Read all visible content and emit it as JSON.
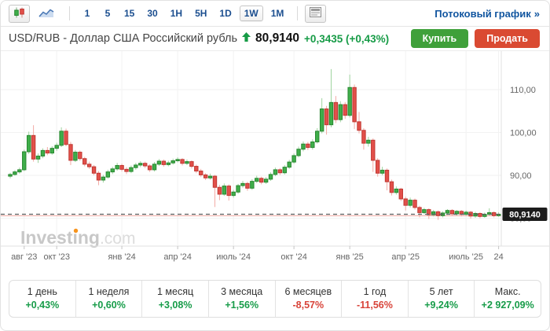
{
  "toolbar": {
    "chart_type_buttons": [
      {
        "name": "candlestick",
        "active": true
      },
      {
        "name": "line",
        "active": false
      }
    ],
    "timeframes": [
      "1",
      "5",
      "15",
      "30",
      "1H",
      "5H",
      "1D",
      "1W",
      "1M"
    ],
    "active_timeframe": "1W",
    "streaming_link": "Потоковый график",
    "streaming_link_chevron": "»"
  },
  "header": {
    "title": "USD/RUB - Доллар США Российский рубль",
    "price": "80,9140",
    "change": "+0,3435",
    "change_pct": "(+0,43%)",
    "direction": "up",
    "buy_label": "Купить",
    "sell_label": "Продать"
  },
  "chart_data": {
    "type": "candlestick",
    "instrument": "USD/RUB",
    "timeframe": "1W",
    "watermark": {
      "main": "Investing",
      "suffix": ".com",
      "dot_color": "#f7941d"
    },
    "ylim": [
      78,
      116
    ],
    "y_ticks": [
      {
        "value": 110,
        "label": "110,00"
      },
      {
        "value": 100,
        "label": "100,00"
      },
      {
        "value": 90,
        "label": "90,00"
      },
      {
        "value": 80,
        "label": "80,00"
      }
    ],
    "x_ticks": [
      {
        "index": 3,
        "label": "авг '23"
      },
      {
        "index": 10,
        "label": "окт '23"
      },
      {
        "index": 24,
        "label": "янв '24"
      },
      {
        "index": 36,
        "label": "апр '24"
      },
      {
        "index": 48,
        "label": "июль '24"
      },
      {
        "index": 61,
        "label": "окт '24"
      },
      {
        "index": 73,
        "label": "янв '25"
      },
      {
        "index": 85,
        "label": "апр '25"
      },
      {
        "index": 98,
        "label": "июль '25"
      },
      {
        "index": 105,
        "label": "24"
      }
    ],
    "last_price": 80.914,
    "last_price_label": "80,9140",
    "prev_close_line": 80.55,
    "candles": [
      [
        89.8,
        90.6,
        89.3,
        90.2
      ],
      [
        90.2,
        91.2,
        89.9,
        90.8
      ],
      [
        90.8,
        91.8,
        90.4,
        91.3
      ],
      [
        91.3,
        96.0,
        91.0,
        95.5
      ],
      [
        95.5,
        100.2,
        95.0,
        99.3
      ],
      [
        99.3,
        101.7,
        93.2,
        93.8
      ],
      [
        93.8,
        95.1,
        92.9,
        94.5
      ],
      [
        94.5,
        96.3,
        94.0,
        95.8
      ],
      [
        95.8,
        96.6,
        94.7,
        95.2
      ],
      [
        95.2,
        96.8,
        94.8,
        96.3
      ],
      [
        96.3,
        97.6,
        95.7,
        97.0
      ],
      [
        97.0,
        101.2,
        96.6,
        100.3
      ],
      [
        100.3,
        100.9,
        96.8,
        97.2
      ],
      [
        97.2,
        97.8,
        92.4,
        93.5
      ],
      [
        93.5,
        95.9,
        93.1,
        95.4
      ],
      [
        95.4,
        95.8,
        93.4,
        93.9
      ],
      [
        93.9,
        94.3,
        92.1,
        92.6
      ],
      [
        92.6,
        93.2,
        91.5,
        92.0
      ],
      [
        92.0,
        92.4,
        90.0,
        90.5
      ],
      [
        90.5,
        91.0,
        87.7,
        88.9
      ],
      [
        88.9,
        90.1,
        88.3,
        89.6
      ],
      [
        89.6,
        91.3,
        89.2,
        90.8
      ],
      [
        90.8,
        92.0,
        90.3,
        91.5
      ],
      [
        91.5,
        92.9,
        91.1,
        92.3
      ],
      [
        92.3,
        92.7,
        90.9,
        91.4
      ],
      [
        91.4,
        91.9,
        90.3,
        90.9
      ],
      [
        90.9,
        92.3,
        90.5,
        91.8
      ],
      [
        91.8,
        92.9,
        91.3,
        92.4
      ],
      [
        92.4,
        93.3,
        91.9,
        92.8
      ],
      [
        92.8,
        93.2,
        91.7,
        92.2
      ],
      [
        92.2,
        92.6,
        90.8,
        91.3
      ],
      [
        91.3,
        93.1,
        90.9,
        92.6
      ],
      [
        92.6,
        93.8,
        92.2,
        93.3
      ],
      [
        93.3,
        93.7,
        92.0,
        92.5
      ],
      [
        92.5,
        93.4,
        92.1,
        92.9
      ],
      [
        92.9,
        93.9,
        92.5,
        93.4
      ],
      [
        93.4,
        94.2,
        93.0,
        93.7
      ],
      [
        93.7,
        94.0,
        92.3,
        92.8
      ],
      [
        92.8,
        93.7,
        92.4,
        93.2
      ],
      [
        93.2,
        93.5,
        91.6,
        92.1
      ],
      [
        92.1,
        92.5,
        90.5,
        91.0
      ],
      [
        91.0,
        91.5,
        89.6,
        90.1
      ],
      [
        90.1,
        90.5,
        88.9,
        89.4
      ],
      [
        89.4,
        90.4,
        89.0,
        89.8
      ],
      [
        89.8,
        90.1,
        82.6,
        87.2
      ],
      [
        87.2,
        87.8,
        84.2,
        85.6
      ],
      [
        85.6,
        88.1,
        85.2,
        87.5
      ],
      [
        87.5,
        87.9,
        84.1,
        85.3
      ],
      [
        85.3,
        86.6,
        84.8,
        86.1
      ],
      [
        86.1,
        88.0,
        85.7,
        87.6
      ],
      [
        87.6,
        88.7,
        87.1,
        88.1
      ],
      [
        88.1,
        88.5,
        86.4,
        87.0
      ],
      [
        87.0,
        89.1,
        86.6,
        88.6
      ],
      [
        88.6,
        89.9,
        88.2,
        89.3
      ],
      [
        89.3,
        89.7,
        87.9,
        88.4
      ],
      [
        88.4,
        89.6,
        88.0,
        89.1
      ],
      [
        89.1,
        90.7,
        88.7,
        90.2
      ],
      [
        90.2,
        91.8,
        89.8,
        91.3
      ],
      [
        91.3,
        91.7,
        90.1,
        90.6
      ],
      [
        90.6,
        92.4,
        90.2,
        91.9
      ],
      [
        91.9,
        93.6,
        91.5,
        93.1
      ],
      [
        93.1,
        95.1,
        92.7,
        94.6
      ],
      [
        94.6,
        96.7,
        94.2,
        96.1
      ],
      [
        96.1,
        97.9,
        95.6,
        97.3
      ],
      [
        97.3,
        97.8,
        95.9,
        96.5
      ],
      [
        96.5,
        98.4,
        96.0,
        97.8
      ],
      [
        97.8,
        101.0,
        97.4,
        100.3
      ],
      [
        100.3,
        108.0,
        99.8,
        105.5
      ],
      [
        105.5,
        106.2,
        99.5,
        101.8
      ],
      [
        101.8,
        114.8,
        101.2,
        107.0
      ],
      [
        107.0,
        108.5,
        102.2,
        103.0
      ],
      [
        103.0,
        107.3,
        102.4,
        106.5
      ],
      [
        106.5,
        107.1,
        103.2,
        104.0
      ],
      [
        104.0,
        113.5,
        103.5,
        110.5
      ],
      [
        110.5,
        111.2,
        100.8,
        102.5
      ],
      [
        102.5,
        104.8,
        99.8,
        100.5
      ],
      [
        100.5,
        101.0,
        96.0,
        97.5
      ],
      [
        97.5,
        99.0,
        96.7,
        98.2
      ],
      [
        98.2,
        98.6,
        90.8,
        93.5
      ],
      [
        93.5,
        94.0,
        89.7,
        90.5
      ],
      [
        90.5,
        92.0,
        90.0,
        91.2
      ],
      [
        91.2,
        91.6,
        86.5,
        88.5
      ],
      [
        88.5,
        89.0,
        85.3,
        86.0
      ],
      [
        86.0,
        87.4,
        85.5,
        86.8
      ],
      [
        86.8,
        87.1,
        84.0,
        84.5
      ],
      [
        84.5,
        85.0,
        81.8,
        83.0
      ],
      [
        83.0,
        84.8,
        82.5,
        84.2
      ],
      [
        84.2,
        84.6,
        82.0,
        82.5
      ],
      [
        82.5,
        82.9,
        80.2,
        81.3
      ],
      [
        81.3,
        82.4,
        80.9,
        82.0
      ],
      [
        82.0,
        82.3,
        79.8,
        80.8
      ],
      [
        80.8,
        81.9,
        80.4,
        81.5
      ],
      [
        81.5,
        81.8,
        79.6,
        80.6
      ],
      [
        80.6,
        81.6,
        80.2,
        81.2
      ],
      [
        81.2,
        82.1,
        80.8,
        81.8
      ],
      [
        81.8,
        82.1,
        80.6,
        81.0
      ],
      [
        81.0,
        81.9,
        80.6,
        81.6
      ],
      [
        81.6,
        81.9,
        80.4,
        80.9
      ],
      [
        80.9,
        81.8,
        80.5,
        81.4
      ],
      [
        81.4,
        81.7,
        79.9,
        80.5
      ],
      [
        80.5,
        81.5,
        80.1,
        81.1
      ],
      [
        81.1,
        81.4,
        80.0,
        80.4
      ],
      [
        80.4,
        81.3,
        80.1,
        80.9
      ],
      [
        80.9,
        82.3,
        80.6,
        81.3
      ],
      [
        81.3,
        81.6,
        80.2,
        80.6
      ],
      [
        80.6,
        81.4,
        80.3,
        80.914
      ]
    ],
    "colors": {
      "up": "#3fae4a",
      "up_stroke": "#27872f",
      "up_wick": "#9fd49f",
      "down": "#e2504a",
      "down_stroke": "#c03832",
      "down_wick": "#f2aaa4",
      "grid": "#f2f2f2",
      "axis_text": "#666666",
      "tick_mark": "#c4c4c4",
      "dashed_line": "#5a5a5a",
      "prev_close": "#f0aca6",
      "price_tag_bg": "#1c1c1c",
      "price_tag_text": "#ffffff",
      "watermark_main": "#c8c8c8",
      "watermark_suffix": "#dcdcdc",
      "separator": "#e0e0e0"
    }
  },
  "stats": {
    "items": [
      {
        "label": "1 день",
        "value": "+0,43%",
        "direction": "up"
      },
      {
        "label": "1 неделя",
        "value": "+0,60%",
        "direction": "up"
      },
      {
        "label": "1 месяц",
        "value": "+3,08%",
        "direction": "up"
      },
      {
        "label": "3 месяца",
        "value": "+1,56%",
        "direction": "up"
      },
      {
        "label": "6 месяцев",
        "value": "-8,57%",
        "direction": "down"
      },
      {
        "label": "1 год",
        "value": "-11,56%",
        "direction": "down"
      },
      {
        "label": "5 лет",
        "value": "+9,24%",
        "direction": "up"
      },
      {
        "label": "Макс.",
        "value": "+2 927,09%",
        "direction": "up"
      }
    ]
  }
}
